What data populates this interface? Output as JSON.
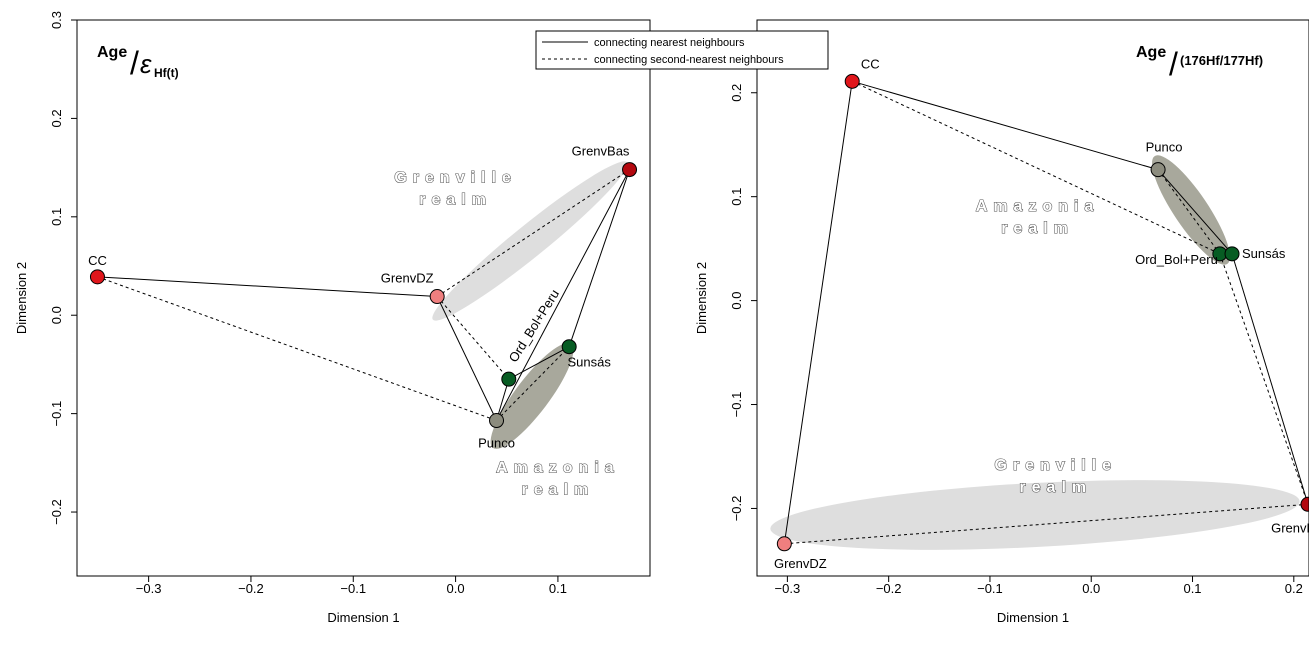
{
  "legend": {
    "items": [
      {
        "label": "connecting nearest neighbours",
        "style": "solid"
      },
      {
        "label": "connecting second-nearest neighbours",
        "style": "dashed"
      }
    ]
  },
  "colors": {
    "red": "#e0161b",
    "darkred": "#b3080f",
    "pink": "#ef7f7f",
    "green": "#075c23",
    "gray": "#8c8c7e",
    "lightEllipse": "#dedede",
    "darkEllipse": "#a8a89c"
  },
  "chart_data": [
    {
      "type": "scatter",
      "title": {
        "main": "Age",
        "sub": "Hf(t)",
        "symbol": "ε"
      },
      "xlabel": "Dimension 1",
      "ylabel": "Dimension 2",
      "xlim": [
        -0.37,
        0.19
      ],
      "ylim": [
        -0.265,
        0.3
      ],
      "xticks": [
        "−0.3",
        "−0.2",
        "−0.1",
        "0.0",
        "0.1"
      ],
      "xtick_values": [
        -0.3,
        -0.2,
        -0.1,
        0.0,
        0.1
      ],
      "yticks": [
        "−0.2",
        "−0.1",
        "0.0",
        "0.1",
        "0.2",
        "0.3"
      ],
      "ytick_values": [
        -0.2,
        -0.1,
        0.0,
        0.1,
        0.2,
        0.3
      ],
      "points": [
        {
          "name": "CC",
          "x": -0.35,
          "y": 0.039,
          "color": "red"
        },
        {
          "name": "GrenvDZ",
          "x": -0.018,
          "y": 0.019,
          "color": "pink"
        },
        {
          "name": "GrenvBas",
          "x": 0.17,
          "y": 0.148,
          "color": "darkred"
        },
        {
          "name": "Ord_Bol+Peru",
          "x": 0.052,
          "y": -0.065,
          "color": "green"
        },
        {
          "name": "Sunsás",
          "x": 0.111,
          "y": -0.032,
          "color": "green"
        },
        {
          "name": "Punco",
          "x": 0.04,
          "y": -0.107,
          "color": "gray"
        }
      ],
      "nearest": [
        [
          "CC",
          "GrenvDZ"
        ],
        [
          "GrenvDZ",
          "Punco"
        ],
        [
          "Punco",
          "Ord_Bol+Peru"
        ],
        [
          "Ord_Bol+Peru",
          "Sunsás"
        ],
        [
          "Sunsás",
          "GrenvBas"
        ],
        [
          "GrenvBas",
          "Punco"
        ]
      ],
      "second": [
        [
          "CC",
          "Punco"
        ],
        [
          "GrenvDZ",
          "GrenvBas"
        ],
        [
          "GrenvDZ",
          "Ord_Bol+Peru"
        ],
        [
          "Punco",
          "Sunsás"
        ]
      ],
      "realms": [
        {
          "label_lines": [
            "Grenville",
            "realm"
          ],
          "x": 0.0,
          "y": 0.135
        },
        {
          "label_lines": [
            "Amazonia",
            "realm"
          ],
          "x": 0.1,
          "y": -0.16
        }
      ]
    },
    {
      "type": "scatter",
      "title": {
        "main": "Age",
        "sub": "(176Hf/177Hf)"
      },
      "xlabel": "Dimension 1",
      "ylabel": "Dimension 2",
      "xlim": [
        -0.33,
        0.215
      ],
      "ylim": [
        -0.265,
        0.27
      ],
      "xticks": [
        "−0.3",
        "−0.2",
        "−0.1",
        "0.0",
        "0.1",
        "0.2"
      ],
      "xtick_values": [
        -0.3,
        -0.2,
        -0.1,
        0.0,
        0.1,
        0.2
      ],
      "yticks": [
        "−0.2",
        "−0.1",
        "0.0",
        "0.1",
        "0.2"
      ],
      "ytick_values": [
        -0.2,
        -0.1,
        0.0,
        0.1,
        0.2
      ],
      "points": [
        {
          "name": "CC",
          "x": -0.236,
          "y": 0.211,
          "color": "red"
        },
        {
          "name": "Punco",
          "x": 0.066,
          "y": 0.126,
          "color": "gray"
        },
        {
          "name": "Ord_Bol+Peru",
          "x": 0.127,
          "y": 0.045,
          "color": "green"
        },
        {
          "name": "Sunsás",
          "x": 0.139,
          "y": 0.045,
          "color": "green"
        },
        {
          "name": "GrenvDZ",
          "x": -0.303,
          "y": -0.234,
          "color": "pink"
        },
        {
          "name": "GrenvBas",
          "x": 0.214,
          "y": -0.196,
          "color": "darkred"
        }
      ],
      "nearest": [
        [
          "CC",
          "Punco"
        ],
        [
          "CC",
          "GrenvDZ"
        ],
        [
          "Punco",
          "Sunsás"
        ],
        [
          "Ord_Bol+Peru",
          "Sunsás"
        ],
        [
          "Sunsás",
          "GrenvBas"
        ]
      ],
      "second": [
        [
          "CC",
          "Ord_Bol+Peru"
        ],
        [
          "Punco",
          "Ord_Bol+Peru"
        ],
        [
          "Ord_Bol+Peru",
          "GrenvBas"
        ],
        [
          "GrenvDZ",
          "GrenvBas"
        ]
      ],
      "realms": [
        {
          "label_lines": [
            "Amazonia",
            "realm"
          ],
          "x": -0.053,
          "y": 0.086
        },
        {
          "label_lines": [
            "Grenville",
            "realm"
          ],
          "x": -0.035,
          "y": -0.163
        }
      ]
    }
  ]
}
